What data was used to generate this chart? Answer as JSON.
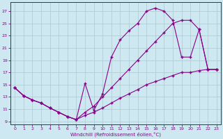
{
  "xlabel": "Windchill (Refroidissement éolien,°C)",
  "bg_color": "#cde8f0",
  "line_color": "#880088",
  "grid_color": "#b0c8d0",
  "xlim_min": -0.5,
  "xlim_max": 23.5,
  "ylim_min": 8.5,
  "ylim_max": 28.5,
  "xticks": [
    0,
    1,
    2,
    3,
    4,
    5,
    6,
    7,
    8,
    9,
    10,
    11,
    12,
    13,
    14,
    15,
    16,
    17,
    18,
    19,
    20,
    21,
    22,
    23
  ],
  "yticks": [
    9,
    11,
    13,
    15,
    17,
    19,
    21,
    23,
    25,
    27
  ],
  "s1_x": [
    0,
    1,
    2,
    3,
    4,
    5,
    6,
    7,
    8,
    9,
    10,
    11,
    12,
    13,
    14,
    15,
    16,
    17,
    18,
    19,
    20,
    21,
    22,
    23
  ],
  "s1_y": [
    14.5,
    13.2,
    12.5,
    12.0,
    11.2,
    10.5,
    9.8,
    9.3,
    15.2,
    10.8,
    13.5,
    19.5,
    22.3,
    23.8,
    25.0,
    27.0,
    27.5,
    27.0,
    25.5,
    19.5,
    19.5,
    24.0,
    17.5,
    17.5
  ],
  "s2_x": [
    0,
    1,
    2,
    3,
    4,
    5,
    6,
    7,
    8,
    9,
    10,
    11,
    12,
    13,
    14,
    15,
    16,
    17,
    18,
    19,
    20,
    21,
    22,
    23
  ],
  "s2_y": [
    14.5,
    13.2,
    12.5,
    12.0,
    11.2,
    10.5,
    9.8,
    9.3,
    10.5,
    11.5,
    13.0,
    14.5,
    16.0,
    17.5,
    19.0,
    20.5,
    22.0,
    23.5,
    25.0,
    25.5,
    25.5,
    24.0,
    17.5,
    17.5
  ],
  "s3_x": [
    0,
    1,
    2,
    3,
    4,
    5,
    6,
    7,
    8,
    9,
    10,
    11,
    12,
    13,
    14,
    15,
    16,
    17,
    18,
    19,
    20,
    21,
    22,
    23
  ],
  "s3_y": [
    14.5,
    13.2,
    12.5,
    12.0,
    11.2,
    10.5,
    9.8,
    9.3,
    10.0,
    10.5,
    11.2,
    12.0,
    12.8,
    13.5,
    14.2,
    15.0,
    15.5,
    16.0,
    16.5,
    17.0,
    17.0,
    17.3,
    17.5,
    17.5
  ]
}
